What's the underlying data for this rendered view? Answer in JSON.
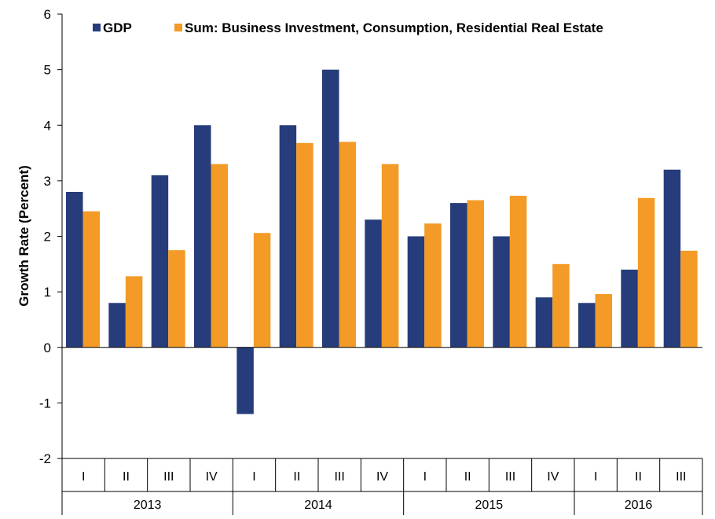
{
  "chart_data": {
    "type": "bar",
    "title": "",
    "xlabel": "",
    "ylabel": "Growth Rate (Percent)",
    "ylim": [
      -2,
      6
    ],
    "yticks": [
      "-2",
      "-1",
      "0",
      "1",
      "2",
      "3",
      "4",
      "5",
      "6"
    ],
    "legend_position": "top",
    "categories": [
      "I",
      "II",
      "III",
      "IV",
      "I",
      "II",
      "III",
      "IV",
      "I",
      "II",
      "III",
      "IV",
      "I",
      "II",
      "III"
    ],
    "year_groups": [
      {
        "label": "2013",
        "count": 4
      },
      {
        "label": "2014",
        "count": 4
      },
      {
        "label": "2015",
        "count": 4
      },
      {
        "label": "2016",
        "count": 3
      }
    ],
    "series": [
      {
        "name": "GDP",
        "color": "#263c7b",
        "values": [
          2.8,
          0.8,
          3.1,
          4.0,
          -1.2,
          4.0,
          5.0,
          2.3,
          2.0,
          2.6,
          2.0,
          0.9,
          0.8,
          1.4,
          3.2
        ]
      },
      {
        "name": "Sum: Business Investment, Consumption, Residential Real Estate",
        "color": "#f39a27",
        "values": [
          2.45,
          1.28,
          1.75,
          3.3,
          2.06,
          3.68,
          3.7,
          3.3,
          2.23,
          2.65,
          2.73,
          1.5,
          0.96,
          2.69,
          1.74
        ]
      }
    ]
  }
}
